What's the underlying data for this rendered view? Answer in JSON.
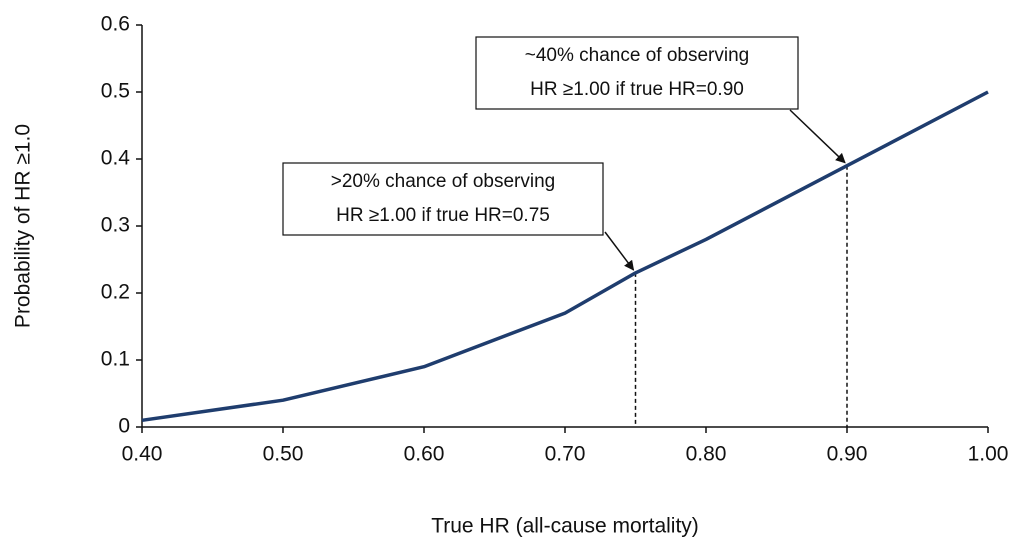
{
  "chart_data": {
    "type": "line",
    "x_label": "True HR (all-cause mortality)",
    "y_label": "Probability of HR ≥1.0",
    "x": [
      0.4,
      0.5,
      0.6,
      0.7,
      0.75,
      0.8,
      0.9,
      1.0
    ],
    "series": [
      {
        "color": "#1f3d6e",
        "values": [
          0.01,
          0.04,
          0.09,
          0.17,
          0.23,
          0.28,
          0.39,
          0.5
        ]
      }
    ],
    "xlim": [
      0.4,
      1.0
    ],
    "xticks": [
      {
        "value": 0.4,
        "label": "0.40"
      },
      {
        "value": 0.5,
        "label": "0.50"
      },
      {
        "value": 0.6,
        "label": "0.60"
      },
      {
        "value": 0.7,
        "label": "0.70"
      },
      {
        "value": 0.8,
        "label": "0.80"
      },
      {
        "value": 0.9,
        "label": "0.90"
      },
      {
        "value": 1.0,
        "label": "1.00"
      }
    ],
    "ylim": [
      0,
      0.6
    ],
    "yticks": [
      0,
      0.1,
      0.2,
      0.3,
      0.4,
      0.5,
      0.6
    ],
    "annotations": [
      {
        "text": [
          ">20% chance of observing",
          "HR ≥1.00 if true HR=0.75"
        ],
        "x": 0.75,
        "y": 0.23
      },
      {
        "text": [
          "~40% chance of observing",
          "HR ≥1.00 if true HR=0.90"
        ],
        "x": 0.9,
        "y": 0.39
      }
    ]
  }
}
